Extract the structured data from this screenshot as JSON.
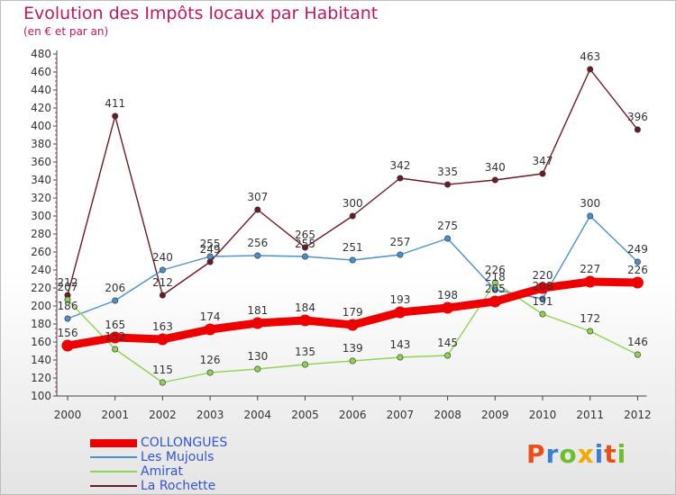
{
  "title": "Evolution des Impôts locaux par Habitant",
  "subtitle": "(en € et par an)",
  "logo": {
    "text": "Proxiti",
    "colors": [
      "#e94e1b",
      "#3a7fd5",
      "#6cbf2d",
      "#f2a900",
      "#3a7fd5",
      "#e94e1b",
      "#6cbf2d"
    ]
  },
  "chart_data": {
    "type": "line",
    "x": [
      "2000",
      "2001",
      "2002",
      "2003",
      "2004",
      "2005",
      "2006",
      "2007",
      "2008",
      "2009",
      "2010",
      "2011",
      "2012"
    ],
    "ylim": [
      100,
      480
    ],
    "yticks": [
      100,
      120,
      140,
      160,
      180,
      200,
      220,
      240,
      260,
      280,
      300,
      320,
      340,
      360,
      380,
      400,
      420,
      440,
      460,
      480
    ],
    "grid": false,
    "series": [
      {
        "name": "La Rochette",
        "color": "#6b1a26",
        "values": [
          212,
          411,
          212,
          249,
          307,
          265,
          300,
          342,
          335,
          340,
          347,
          463,
          396
        ],
        "labels": [
          "212",
          "411",
          "212",
          "249",
          "307",
          "265",
          "300",
          "342",
          "335",
          "340",
          "347",
          "463",
          "396"
        ]
      },
      {
        "name": "Les Mujouls",
        "color": "#4a90d0",
        "values": [
          186,
          206,
          240,
          255,
          256,
          255,
          251,
          257,
          275,
          218,
          208,
          300,
          249
        ],
        "labels": [
          "186",
          "206",
          "240",
          "255",
          "256",
          "255",
          "251",
          "257",
          "275",
          "218",
          "208",
          "300",
          "249"
        ]
      },
      {
        "name": "Amirat",
        "color": "#8fd450",
        "values": [
          207,
          152,
          115,
          126,
          130,
          135,
          139,
          143,
          145,
          226,
          191,
          172,
          146
        ],
        "labels": [
          "207",
          "152",
          "115",
          "126",
          "130",
          "135",
          "139",
          "143",
          "145",
          "226",
          "191",
          "172",
          "146"
        ]
      },
      {
        "name": "COLLONGUES",
        "color": "#ee0000",
        "values": [
          156,
          165,
          163,
          174,
          181,
          184,
          179,
          193,
          198,
          205,
          220,
          227,
          226
        ],
        "labels": [
          "156",
          "165",
          "163",
          "174",
          "181",
          "184",
          "179",
          "193",
          "198",
          "205",
          "220",
          "227",
          "226"
        ]
      }
    ],
    "legend": [
      {
        "name": "COLLONGUES",
        "color": "#ee0000",
        "thick": true
      },
      {
        "name": "Les Mujouls",
        "color": "#4a90d0",
        "thick": false
      },
      {
        "name": "Amirat",
        "color": "#8fd450",
        "thick": false
      },
      {
        "name": "La Rochette",
        "color": "#6b1a26",
        "thick": false
      }
    ],
    "legend_position": "bottom-left"
  }
}
